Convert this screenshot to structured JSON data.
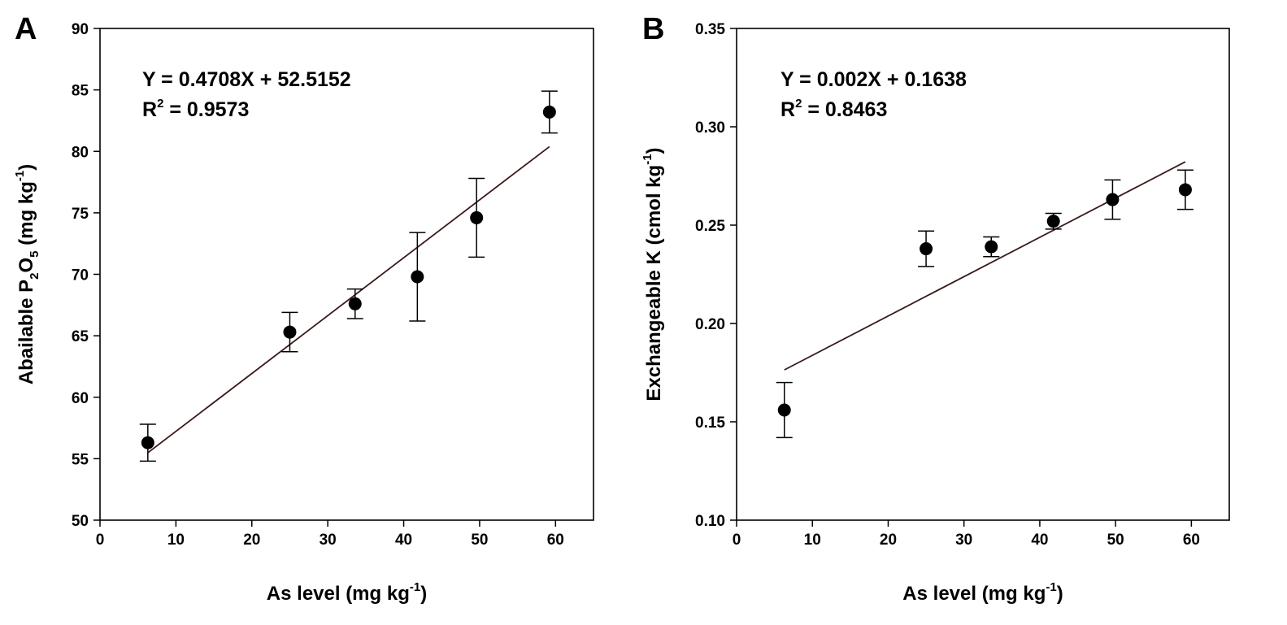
{
  "chart_data": [
    {
      "type": "scatter",
      "panel_label": "A",
      "xlabel": {
        "main": "As level (mg kg",
        "sup": "-1",
        "tail": ")"
      },
      "ylabel": {
        "main": "Abailable P",
        "sub1": "2",
        "mid": "O",
        "sub2": "5",
        "rest": " (mg kg",
        "sup": "-1",
        "tail": ")"
      },
      "xlim": [
        0,
        65
      ],
      "ylim": [
        50,
        90
      ],
      "xticks": [
        0,
        10,
        20,
        30,
        40,
        50,
        60
      ],
      "yticks": [
        50,
        55,
        60,
        65,
        70,
        75,
        80,
        85,
        90
      ],
      "points": [
        {
          "x": 6.3,
          "y": 56.3,
          "err": 1.5
        },
        {
          "x": 25.0,
          "y": 65.3,
          "err": 1.6
        },
        {
          "x": 33.6,
          "y": 67.6,
          "err": 1.2
        },
        {
          "x": 41.8,
          "y": 69.8,
          "err": 3.6
        },
        {
          "x": 49.6,
          "y": 74.6,
          "err": 3.2
        },
        {
          "x": 59.2,
          "y": 83.2,
          "err": 1.7
        }
      ],
      "fit": {
        "slope": 0.4708,
        "intercept": 52.5152,
        "x_range": [
          6.3,
          59.2
        ]
      },
      "equation": "Y = 0.4708X + 52.5152",
      "r2_label": "R",
      "r2_sup": "2",
      "r2_value": " = 0.9573",
      "grid": false,
      "line_color": "#3a1a1a"
    },
    {
      "type": "scatter",
      "panel_label": "B",
      "xlabel": {
        "main": "As level (mg kg",
        "sup": "-1",
        "tail": ")"
      },
      "ylabel": {
        "main": "Exchangeable K (cmol kg",
        "sup": "-1",
        "tail": ")"
      },
      "xlim": [
        0,
        65
      ],
      "ylim": [
        0.1,
        0.35
      ],
      "xticks": [
        0,
        10,
        20,
        30,
        40,
        50,
        60
      ],
      "yticks": [
        "0.10",
        "0.15",
        "0.20",
        "0.25",
        "0.30",
        "0.35"
      ],
      "points": [
        {
          "x": 6.3,
          "y": 0.156,
          "err": 0.014
        },
        {
          "x": 25.0,
          "y": 0.238,
          "err": 0.009
        },
        {
          "x": 33.6,
          "y": 0.239,
          "err": 0.005
        },
        {
          "x": 41.8,
          "y": 0.252,
          "err": 0.004
        },
        {
          "x": 49.6,
          "y": 0.263,
          "err": 0.01
        },
        {
          "x": 59.2,
          "y": 0.268,
          "err": 0.01
        }
      ],
      "fit": {
        "slope": 0.002,
        "intercept": 0.1638,
        "x_range": [
          6.3,
          59.2
        ]
      },
      "equation": "Y = 0.002X + 0.1638",
      "r2_label": "R",
      "r2_sup": "2",
      "r2_value": " = 0.8463",
      "grid": false,
      "line_color": "#3a1a1a"
    }
  ]
}
